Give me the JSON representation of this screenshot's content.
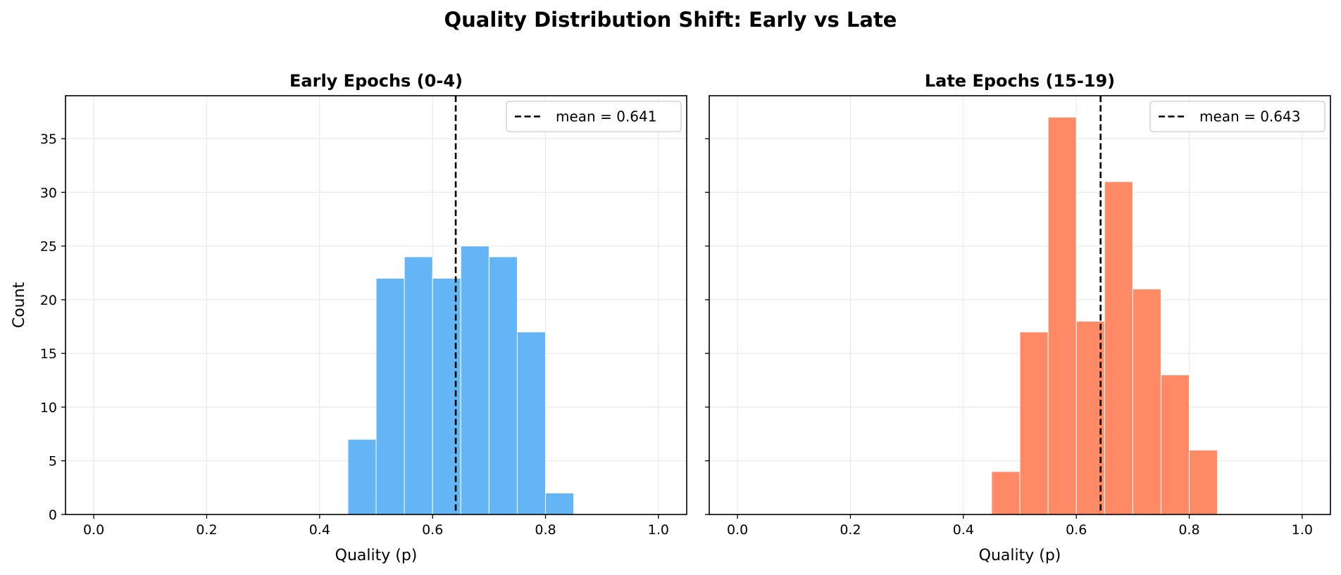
{
  "suptitle": "Quality Distribution Shift: Early vs Late",
  "chart_data": [
    {
      "type": "bar",
      "subtype": "histogram",
      "title": "Early Epochs (0-4)",
      "xlabel": "Quality (p)",
      "ylabel": "Count",
      "xlim": [
        -0.05,
        1.05
      ],
      "ylim": [
        0,
        39
      ],
      "xticks": [
        0.0,
        0.2,
        0.4,
        0.6,
        0.8,
        1.0
      ],
      "xtick_labels": [
        "0.0",
        "0.2",
        "0.4",
        "0.6",
        "0.8",
        "1.0"
      ],
      "yticks": [
        0,
        5,
        10,
        15,
        20,
        25,
        30,
        35
      ],
      "ytick_labels": [
        "0",
        "5",
        "10",
        "15",
        "20",
        "25",
        "30",
        "35"
      ],
      "grid": true,
      "color": "#64B5F6",
      "bins": [
        0.45,
        0.5,
        0.55,
        0.6,
        0.65,
        0.7,
        0.75,
        0.8,
        0.85
      ],
      "counts": [
        7,
        22,
        24,
        22,
        25,
        24,
        17,
        2
      ],
      "mean_line": {
        "value": 0.641,
        "label": "mean = 0.641"
      },
      "legend_position": "top-right"
    },
    {
      "type": "bar",
      "subtype": "histogram",
      "title": "Late Epochs (15-19)",
      "xlabel": "Quality (p)",
      "ylabel": "",
      "xlim": [
        -0.05,
        1.05
      ],
      "ylim": [
        0,
        39
      ],
      "xticks": [
        0.0,
        0.2,
        0.4,
        0.6,
        0.8,
        1.0
      ],
      "xtick_labels": [
        "0.0",
        "0.2",
        "0.4",
        "0.6",
        "0.8",
        "1.0"
      ],
      "yticks": [
        0,
        5,
        10,
        15,
        20,
        25,
        30,
        35
      ],
      "ytick_labels": [],
      "grid": true,
      "color": "#FF8A65",
      "bins": [
        0.45,
        0.5,
        0.55,
        0.6,
        0.65,
        0.7,
        0.75,
        0.8,
        0.85
      ],
      "counts": [
        4,
        17,
        37,
        18,
        31,
        21,
        13,
        6
      ],
      "mean_line": {
        "value": 0.643,
        "label": "mean = 0.643"
      },
      "legend_position": "top-right"
    }
  ]
}
